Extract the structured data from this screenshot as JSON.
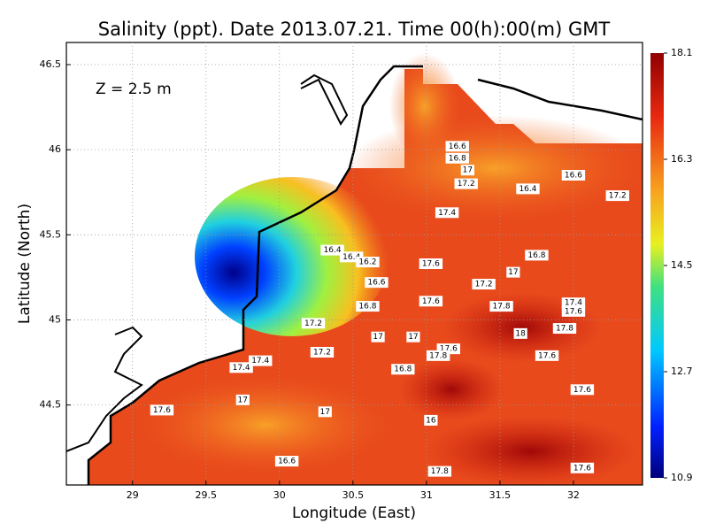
{
  "chart_data": {
    "type": "contour-map",
    "title": "Salinity (ppt). Date 2013.07.21. Time 00(h):00(m) GMT",
    "annotation": "Z = 2.5 m",
    "x_label": "Longitude (East)",
    "y_label": "Latitude (North)",
    "xlim": [
      28.55,
      32.47
    ],
    "ylim": [
      44.03,
      46.63
    ],
    "xticks": [
      29,
      29.5,
      30,
      30.5,
      31,
      31.5,
      32
    ],
    "yticks": [
      44.5,
      45,
      45.5,
      46,
      46.5
    ],
    "grid": true,
    "colorbar": {
      "lim": [
        10.9,
        18.1
      ],
      "ticks": [
        10.9,
        12.7,
        14.5,
        16.3,
        18.1
      ]
    },
    "contour_labels": [
      {
        "value": 16.6,
        "lon": 31.21,
        "lat": 46.02
      },
      {
        "value": 16.8,
        "lon": 31.21,
        "lat": 45.95
      },
      {
        "value": 17,
        "lon": 31.28,
        "lat": 45.88
      },
      {
        "value": 17.2,
        "lon": 31.27,
        "lat": 45.8
      },
      {
        "value": 17.4,
        "lon": 31.14,
        "lat": 45.63
      },
      {
        "value": 16.4,
        "lon": 31.69,
        "lat": 45.77
      },
      {
        "value": 16.6,
        "lon": 32.0,
        "lat": 45.85
      },
      {
        "value": 17.2,
        "lon": 32.3,
        "lat": 45.73
      },
      {
        "value": 16.8,
        "lon": 31.75,
        "lat": 45.38
      },
      {
        "value": 17,
        "lon": 31.59,
        "lat": 45.28
      },
      {
        "value": 17.2,
        "lon": 31.39,
        "lat": 45.21
      },
      {
        "value": 17.6,
        "lon": 31.03,
        "lat": 45.33
      },
      {
        "value": 17.6,
        "lon": 31.03,
        "lat": 45.11
      },
      {
        "value": 17.8,
        "lon": 31.51,
        "lat": 45.08
      },
      {
        "value": 17.4,
        "lon": 32.0,
        "lat": 45.1
      },
      {
        "value": 17.6,
        "lon": 32.0,
        "lat": 45.05
      },
      {
        "value": 18,
        "lon": 31.64,
        "lat": 44.92
      },
      {
        "value": 17.8,
        "lon": 31.94,
        "lat": 44.95
      },
      {
        "value": 17.6,
        "lon": 31.82,
        "lat": 44.79
      },
      {
        "value": 17.6,
        "lon": 32.06,
        "lat": 44.59
      },
      {
        "value": 16.4,
        "lon": 30.36,
        "lat": 45.41
      },
      {
        "value": 16.4,
        "lon": 30.49,
        "lat": 45.37
      },
      {
        "value": 16.2,
        "lon": 30.6,
        "lat": 45.34
      },
      {
        "value": 16.6,
        "lon": 30.66,
        "lat": 45.22
      },
      {
        "value": 16.8,
        "lon": 30.6,
        "lat": 45.08
      },
      {
        "value": 17.2,
        "lon": 30.23,
        "lat": 44.98
      },
      {
        "value": 17,
        "lon": 30.67,
        "lat": 44.9
      },
      {
        "value": 17,
        "lon": 30.91,
        "lat": 44.9
      },
      {
        "value": 17.6,
        "lon": 31.15,
        "lat": 44.83
      },
      {
        "value": 17.8,
        "lon": 31.08,
        "lat": 44.79
      },
      {
        "value": 17.2,
        "lon": 30.29,
        "lat": 44.81
      },
      {
        "value": 16.8,
        "lon": 30.84,
        "lat": 44.71
      },
      {
        "value": 17.4,
        "lon": 29.74,
        "lat": 44.72
      },
      {
        "value": 17.4,
        "lon": 29.87,
        "lat": 44.76
      },
      {
        "value": 17,
        "lon": 29.75,
        "lat": 44.53
      },
      {
        "value": 17.6,
        "lon": 29.2,
        "lat": 44.47
      },
      {
        "value": 17,
        "lon": 30.31,
        "lat": 44.46
      },
      {
        "value": 16,
        "lon": 31.03,
        "lat": 44.41
      },
      {
        "value": 16.6,
        "lon": 30.05,
        "lat": 44.17
      },
      {
        "value": 17.8,
        "lon": 31.09,
        "lat": 44.11
      },
      {
        "value": 17.6,
        "lon": 32.06,
        "lat": 44.13
      }
    ]
  }
}
